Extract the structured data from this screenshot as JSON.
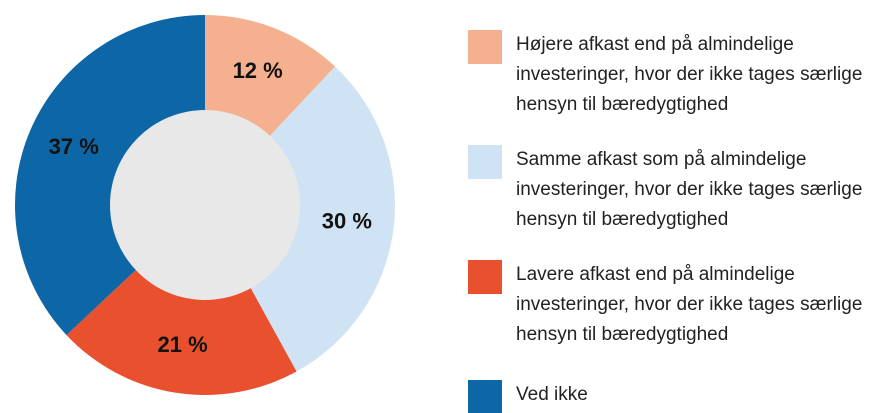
{
  "chart_data": {
    "type": "pie",
    "categories": [
      "Højere afkast end på almindelige investeringer, hvor der ikke tages særlige hensyn til bæredygtighed",
      "Samme afkast som på almindelige investeringer, hvor der ikke tages særlige hensyn til bæredygtighed",
      "Lavere afkast end på almindelige investeringer, hvor der ikke tages særlige hensyn til bæredygtighed",
      "Ved ikke"
    ],
    "values": [
      12,
      30,
      21,
      37
    ],
    "value_labels": [
      "12 %",
      "30 %",
      "21 %",
      "37 %"
    ],
    "colors": [
      "#f5b08f",
      "#cfe3f5",
      "#e8502e",
      "#0d67a6"
    ]
  }
}
